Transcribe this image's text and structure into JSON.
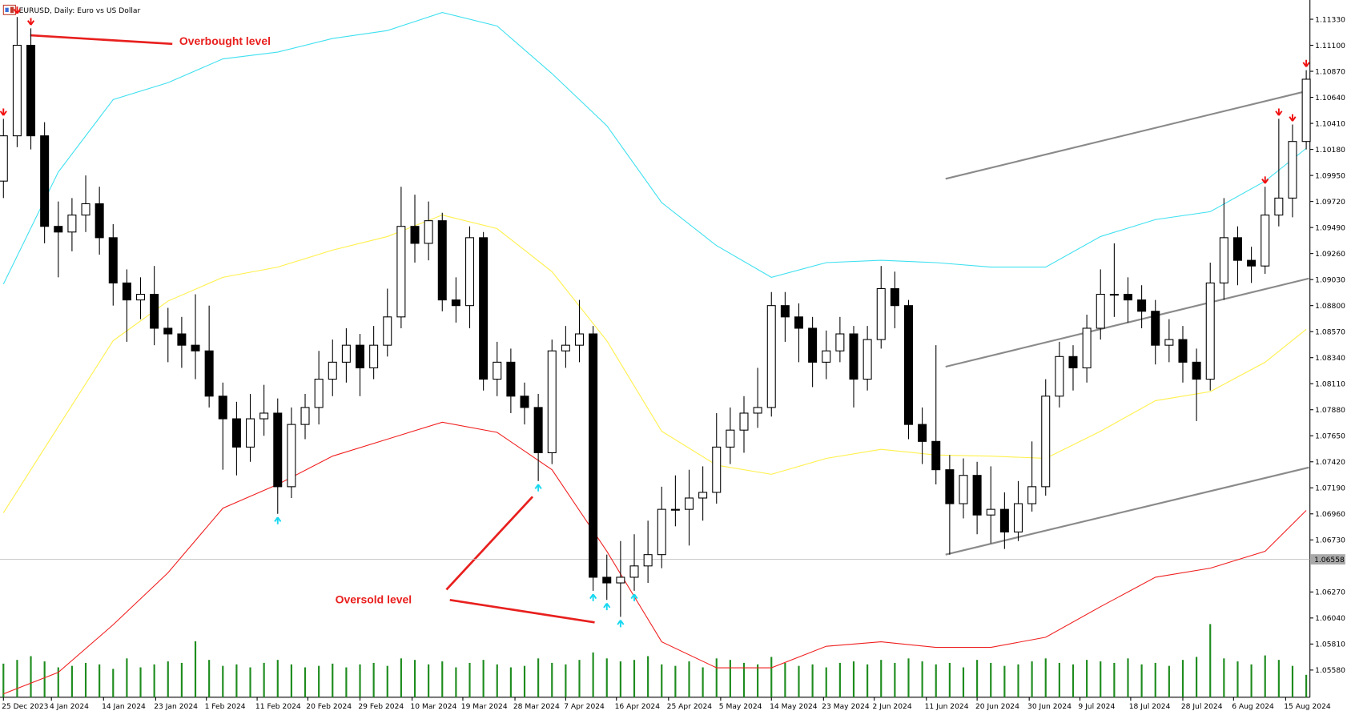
{
  "chart_data": {
    "type": "candlestick",
    "title": "EURUSD, Daily:  Euro vs US Dollar",
    "annotations": [
      "Overbought level",
      "Oversold level"
    ],
    "up_color": "#ffffff",
    "down_color": "#000000",
    "wick_color": "#000000",
    "volume_color": "#1e8c1e",
    "xlim": [
      -0.25,
      95.27
    ],
    "ylim": [
      1.0534,
      1.115
    ],
    "yticks": [
      {
        "value": 1.1133,
        "label": "1.11330"
      },
      {
        "value": 1.111,
        "label": "1.11100"
      },
      {
        "value": 1.1087,
        "label": "1.10870"
      },
      {
        "value": 1.1064,
        "label": "1.10640"
      },
      {
        "value": 1.1041,
        "label": "1.10410"
      },
      {
        "value": 1.1018,
        "label": "1.10180"
      },
      {
        "value": 1.0995,
        "label": "1.09950"
      },
      {
        "value": 1.0972,
        "label": "1.09720"
      },
      {
        "value": 1.0949,
        "label": "1.09490"
      },
      {
        "value": 1.0926,
        "label": "1.09260"
      },
      {
        "value": 1.0903,
        "label": "1.09030"
      },
      {
        "value": 1.088,
        "label": "1.08800"
      },
      {
        "value": 1.0857,
        "label": "1.08570"
      },
      {
        "value": 1.0834,
        "label": "1.08340"
      },
      {
        "value": 1.0811,
        "label": "1.08110"
      },
      {
        "value": 1.0788,
        "label": "1.07880"
      },
      {
        "value": 1.0765,
        "label": "1.07650"
      },
      {
        "value": 1.0742,
        "label": "1.07420"
      },
      {
        "value": 1.0719,
        "label": "1.07190"
      },
      {
        "value": 1.0696,
        "label": "1.06960"
      },
      {
        "value": 1.0673,
        "label": "1.06730"
      },
      {
        "value": 1.0627,
        "label": "1.06270"
      },
      {
        "value": 1.0604,
        "label": "1.06040"
      },
      {
        "value": 1.0581,
        "label": "1.05810"
      },
      {
        "value": 1.0558,
        "label": "1.05580"
      }
    ],
    "xticks": [
      {
        "value": 0,
        "label": "25 Dec 2023"
      },
      {
        "value": 3.5,
        "label": "4 Jan 2024"
      },
      {
        "value": 7.3,
        "label": "14 Jan 2024"
      },
      {
        "value": 11.1,
        "label": "23 Jan 2024"
      },
      {
        "value": 14.8,
        "label": "1 Feb 2024"
      },
      {
        "value": 18.5,
        "label": "11 Feb 2024"
      },
      {
        "value": 22.2,
        "label": "20 Feb 2024"
      },
      {
        "value": 26.0,
        "label": "29 Feb 2024"
      },
      {
        "value": 29.8,
        "label": "10 Mar 2024"
      },
      {
        "value": 33.5,
        "label": "19 Mar 2024"
      },
      {
        "value": 37.3,
        "label": "28 Mar 2024"
      },
      {
        "value": 41.0,
        "label": "7 Apr 2024"
      },
      {
        "value": 44.7,
        "label": "16 Apr 2024"
      },
      {
        "value": 48.5,
        "label": "25 Apr 2024"
      },
      {
        "value": 52.3,
        "label": "5 May 2024"
      },
      {
        "value": 56.0,
        "label": "14 May 2024"
      },
      {
        "value": 59.8,
        "label": "23 May 2024"
      },
      {
        "value": 63.5,
        "label": "2 Jun 2024"
      },
      {
        "value": 67.3,
        "label": "11 Jun 2024"
      },
      {
        "value": 71.0,
        "label": "20 Jun 2024"
      },
      {
        "value": 74.8,
        "label": "30 Jun 2024"
      },
      {
        "value": 78.5,
        "label": "9 Jul 2024"
      },
      {
        "value": 82.2,
        "label": "18 Jul 2024"
      },
      {
        "value": 86.0,
        "label": "28 Jul 2024"
      },
      {
        "value": 89.7,
        "label": "6 Aug 2024"
      },
      {
        "value": 93.5,
        "label": "15 Aug 2024"
      }
    ],
    "open": [
      1.099,
      1.103,
      1.111,
      1.103,
      1.095,
      1.0945,
      1.096,
      1.097,
      1.094,
      1.09,
      1.0885,
      1.089,
      1.086,
      1.0855,
      1.0845,
      1.084,
      1.08,
      1.078,
      1.0755,
      1.078,
      1.0785,
      1.072,
      1.0775,
      1.079,
      1.0815,
      1.083,
      1.0845,
      1.0825,
      1.0845,
      1.087,
      1.095,
      1.0935,
      1.0955,
      1.0885,
      1.088,
      1.094,
      1.0815,
      1.083,
      1.08,
      1.079,
      1.075,
      1.084,
      1.0845,
      1.0855,
      1.064,
      1.0635,
      1.064,
      1.065,
      1.066,
      1.07,
      1.07,
      1.071,
      1.0715,
      1.0755,
      1.077,
      1.0785,
      1.079,
      1.088,
      1.087,
      1.086,
      1.083,
      1.084,
      1.0855,
      1.0815,
      1.085,
      1.0895,
      1.088,
      1.0775,
      1.076,
      1.0735,
      1.0705,
      1.073,
      1.0695,
      1.07,
      1.068,
      1.0705,
      1.072,
      1.08,
      1.0835,
      1.0825,
      1.086,
      1.089,
      1.089,
      1.0885,
      1.0875,
      1.0845,
      1.085,
      1.083,
      1.0815,
      1.09,
      1.094,
      1.092,
      1.0915,
      1.096,
      1.0975,
      1.1025
    ],
    "high": [
      1.1045,
      1.1135,
      1.1125,
      1.1042,
      1.0972,
      1.0975,
      1.0995,
      1.0985,
      1.0952,
      1.0912,
      1.0905,
      1.0915,
      1.0878,
      1.087,
      1.089,
      1.088,
      1.0812,
      1.0795,
      1.0802,
      1.081,
      1.0798,
      1.079,
      1.0802,
      1.084,
      1.085,
      1.086,
      1.0855,
      1.0862,
      1.0895,
      1.0985,
      1.0978,
      1.0972,
      1.0962,
      1.0905,
      1.095,
      1.0945,
      1.0848,
      1.0842,
      1.0812,
      1.0802,
      1.085,
      1.0862,
      1.0885,
      1.0862,
      1.066,
      1.0672,
      1.0678,
      1.069,
      1.072,
      1.073,
      1.0735,
      1.0738,
      1.0785,
      1.079,
      1.08,
      1.0825,
      1.0892,
      1.0892,
      1.0882,
      1.087,
      1.0858,
      1.087,
      1.0862,
      1.0862,
      1.0915,
      1.091,
      1.0885,
      1.079,
      1.0845,
      1.0748,
      1.0745,
      1.0742,
      1.0738,
      1.0715,
      1.0725,
      1.076,
      1.0815,
      1.0848,
      1.0845,
      1.0872,
      1.0912,
      1.0935,
      1.0905,
      1.0898,
      1.0885,
      1.0868,
      1.0862,
      1.0842,
      1.0918,
      1.0975,
      1.095,
      1.0932,
      1.0985,
      1.1045,
      1.104,
      1.1088
    ],
    "low": [
      1.0975,
      1.102,
      1.1018,
      1.0935,
      1.0905,
      1.0928,
      1.0945,
      1.0925,
      1.088,
      1.0848,
      1.0868,
      1.0845,
      1.083,
      1.0825,
      1.0815,
      1.079,
      1.0735,
      1.073,
      1.0742,
      1.0765,
      1.0696,
      1.071,
      1.0762,
      1.0775,
      1.08,
      1.0812,
      1.08,
      1.0815,
      1.0835,
      1.086,
      1.0918,
      1.092,
      1.0875,
      1.0865,
      1.086,
      1.0805,
      1.08,
      1.0785,
      1.0775,
      1.0725,
      1.074,
      1.0825,
      1.083,
      1.0628,
      1.062,
      1.0605,
      1.0628,
      1.0635,
      1.0648,
      1.0685,
      1.0668,
      1.069,
      1.0705,
      1.074,
      1.075,
      1.0772,
      1.0782,
      1.0848,
      1.083,
      1.0808,
      1.0815,
      1.083,
      1.079,
      1.0805,
      1.0842,
      1.086,
      1.0762,
      1.074,
      1.0722,
      1.066,
      1.0692,
      1.0678,
      1.067,
      1.0665,
      1.0672,
      1.0698,
      1.0712,
      1.079,
      1.0805,
      1.0812,
      1.085,
      1.087,
      1.0865,
      1.086,
      1.0828,
      1.083,
      1.0812,
      1.0778,
      1.0805,
      1.0885,
      1.0898,
      1.09,
      1.0908,
      1.095,
      1.0958,
      1.1018
    ],
    "close": [
      1.103,
      1.111,
      1.103,
      1.095,
      1.0945,
      1.096,
      1.097,
      1.094,
      1.09,
      1.0885,
      1.089,
      1.086,
      1.0855,
      1.0845,
      1.084,
      1.08,
      1.078,
      1.0755,
      1.078,
      1.0785,
      1.072,
      1.0775,
      1.079,
      1.0815,
      1.083,
      1.0845,
      1.0825,
      1.0845,
      1.087,
      1.095,
      1.0935,
      1.0955,
      1.0885,
      1.088,
      1.094,
      1.0815,
      1.083,
      1.08,
      1.079,
      1.075,
      1.084,
      1.0845,
      1.0855,
      1.064,
      1.0635,
      1.064,
      1.065,
      1.066,
      1.07,
      1.07,
      1.071,
      1.0715,
      1.0755,
      1.077,
      1.0785,
      1.079,
      1.088,
      1.087,
      1.086,
      1.083,
      1.084,
      1.0855,
      1.0815,
      1.085,
      1.0895,
      1.088,
      1.0775,
      1.076,
      1.0735,
      1.0705,
      1.073,
      1.0695,
      1.07,
      1.068,
      1.0705,
      1.072,
      1.08,
      1.0835,
      1.0825,
      1.086,
      1.089,
      1.089,
      1.0885,
      1.0875,
      1.0845,
      1.085,
      1.083,
      1.0815,
      1.09,
      1.094,
      1.092,
      1.0915,
      1.096,
      1.0975,
      1.1025,
      1.108
    ],
    "volume": [
      45,
      50,
      55,
      48,
      40,
      42,
      46,
      44,
      38,
      52,
      40,
      44,
      48,
      46,
      75,
      50,
      42,
      44,
      40,
      46,
      50,
      44,
      40,
      42,
      45,
      40,
      44,
      46,
      42,
      52,
      50,
      44,
      48,
      40,
      46,
      50,
      44,
      40,
      42,
      52,
      46,
      44,
      50,
      60,
      52,
      48,
      50,
      55,
      44,
      42,
      48,
      40,
      52,
      50,
      46,
      44,
      54,
      46,
      42,
      44,
      40,
      46,
      48,
      44,
      50,
      46,
      52,
      48,
      44,
      46,
      40,
      50,
      46,
      42,
      44,
      48,
      52,
      46,
      44,
      50,
      48,
      46,
      52,
      44,
      46,
      42,
      50,
      54,
      98,
      52,
      48,
      44,
      56,
      50,
      42,
      30
    ],
    "bands": [
      {
        "color": "#3fe0f0",
        "x": [
          0,
          4,
          8,
          12,
          16,
          20,
          24,
          28,
          32,
          36,
          40,
          44,
          48,
          52,
          56,
          60,
          64,
          68,
          72,
          76,
          80,
          84,
          88,
          92,
          95
        ],
        "values": [
          1.0899,
          1.0998,
          1.1062,
          1.1077,
          1.1098,
          1.1104,
          1.1116,
          1.1123,
          1.1139,
          1.1127,
          1.1085,
          1.1039,
          1.0971,
          1.0933,
          1.0905,
          1.0918,
          1.092,
          1.0918,
          1.0914,
          1.0914,
          1.0941,
          1.0956,
          1.0963,
          1.099,
          1.1019
        ]
      },
      {
        "color": "#fff04a",
        "x": [
          0,
          4,
          8,
          12,
          16,
          20,
          24,
          28,
          32,
          36,
          40,
          44,
          48,
          52,
          56,
          60,
          64,
          68,
          72,
          76,
          80,
          84,
          88,
          92,
          95
        ],
        "values": [
          1.0697,
          1.0773,
          1.0849,
          1.0884,
          1.0905,
          1.0914,
          1.0929,
          1.0941,
          1.096,
          1.0948,
          1.091,
          1.0849,
          1.0769,
          1.0739,
          1.0731,
          1.0745,
          1.0753,
          1.0748,
          1.0747,
          1.0745,
          1.0769,
          1.0796,
          1.0804,
          1.083,
          1.0859
        ]
      },
      {
        "color": "#f02020",
        "x": [
          0,
          4,
          8,
          12,
          16,
          20,
          24,
          28,
          32,
          36,
          40,
          44,
          48,
          52,
          56,
          60,
          64,
          68,
          72,
          76,
          80,
          84,
          88,
          92,
          95
        ],
        "values": [
          1.0537,
          1.0556,
          1.0598,
          1.0644,
          1.0701,
          1.0722,
          1.0747,
          1.0762,
          1.0777,
          1.0768,
          1.0735,
          1.0663,
          1.0583,
          1.056,
          1.056,
          1.0579,
          1.0583,
          1.0578,
          1.0578,
          1.0587,
          1.0614,
          1.064,
          1.0648,
          1.0663,
          1.0699
        ]
      }
    ],
    "channel_lines": [
      {
        "color": "#8a8a8a",
        "x": [
          68.7,
          95.2
        ],
        "y": [
          1.0992,
          1.107
        ]
      },
      {
        "color": "#8a8a8a",
        "x": [
          68.7,
          95.2
        ],
        "y": [
          1.0826,
          1.0904
        ]
      },
      {
        "color": "#8a8a8a",
        "x": [
          68.7,
          95.2
        ],
        "y": [
          1.066,
          1.0737
        ]
      }
    ],
    "sell_signals": [
      0,
      1,
      2,
      92,
      93,
      94,
      95
    ],
    "buy_signals": [
      20,
      39,
      43,
      44,
      45,
      46
    ],
    "price_line": 1.06558
  }
}
